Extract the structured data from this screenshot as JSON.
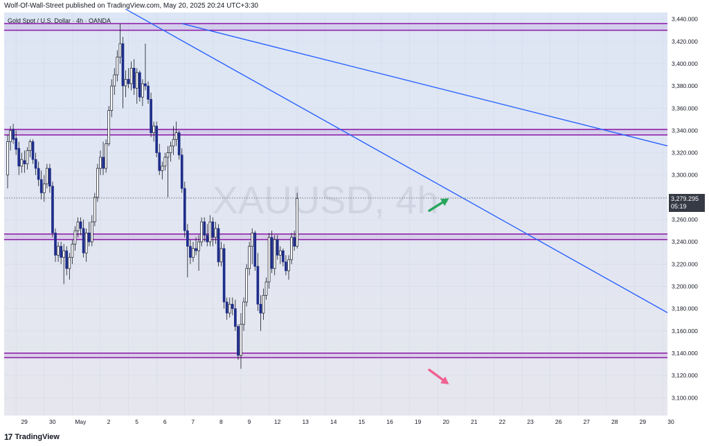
{
  "header": {
    "published_by": "Wolf-Of-Wall-Street published on TradingView.com, May 20, 2025 20:24 UTC+3:30"
  },
  "footer": {
    "logo_mark": "17",
    "logo_text": "TradingView"
  },
  "chart_data": {
    "type": "candlestick",
    "title": "Gold Spot / U.S. Dollar · 4h · OANDA",
    "watermark": "XAUUSD, 4h",
    "ylim": [
      3084,
      3446
    ],
    "y_ticks": [
      3100,
      3120,
      3140,
      3160,
      3180,
      3200,
      3220,
      3240,
      3260,
      3280,
      3300,
      3320,
      3340,
      3360,
      3380,
      3400,
      3420,
      3440
    ],
    "y_tick_labels": [
      "3,100.000",
      "3,120.000",
      "3,140.000",
      "3,160.000",
      "3,180.000",
      "3,200.000",
      "3,220.000",
      "3,240.000",
      "3,260.000",
      "3,280.000",
      "3,300.000",
      "3,320.000",
      "3,340.000",
      "3,360.000",
      "3,380.000",
      "3,400.000",
      "3,420.000",
      "3,440.000"
    ],
    "x_ticks": [
      {
        "label": "29",
        "bar": 3
      },
      {
        "label": "30",
        "bar": 13
      },
      {
        "label": "May",
        "bar": 23
      },
      {
        "label": "2",
        "bar": 33
      },
      {
        "label": "5",
        "bar": 43
      },
      {
        "label": "6",
        "bar": 53
      },
      {
        "label": "7",
        "bar": 63
      },
      {
        "label": "8",
        "bar": 73
      },
      {
        "label": "9",
        "bar": 83
      },
      {
        "label": "12",
        "bar": 93
      },
      {
        "label": "13",
        "bar": 103
      },
      {
        "label": "14",
        "bar": 113
      },
      {
        "label": "15",
        "bar": 123
      },
      {
        "label": "16",
        "bar": 133
      },
      {
        "label": "19",
        "bar": 143
      },
      {
        "label": "20",
        "bar": 153
      },
      {
        "label": "21",
        "bar": 163
      },
      {
        "label": "22",
        "bar": 173
      },
      {
        "label": "23",
        "bar": 183
      },
      {
        "label": "26",
        "bar": 193
      },
      {
        "label": "27",
        "bar": 203
      },
      {
        "label": "28",
        "bar": 213
      },
      {
        "label": "29",
        "bar": 223
      },
      {
        "label": "30",
        "bar": 233
      }
    ],
    "last_price": {
      "value": 3279.295,
      "label": "3,279.295",
      "countdown": "05:19"
    },
    "colors": {
      "up_body": "#ffffff",
      "up_border": "#131722",
      "down_body": "#1f2e8a",
      "wick": "#131722",
      "zone": "#8e24aa",
      "trendline": "#2962ff",
      "bg_top": "#dde6f5",
      "bg_bottom": "#e6e6ee",
      "up_arrow": "#26a65b",
      "down_arrow": "#f06292"
    },
    "horizontal_zones": [
      {
        "top": 3436,
        "bottom": 3430
      },
      {
        "top": 3341,
        "bottom": 3336
      },
      {
        "top": 3247,
        "bottom": 3242
      },
      {
        "top": 3140,
        "bottom": 3136
      }
    ],
    "trendlines": [
      {
        "from": {
          "bar": 62,
          "price": 3436
        },
        "to": {
          "bar": 235,
          "price": 3326
        }
      },
      {
        "from": {
          "bar": 42,
          "price": 3449
        },
        "to": {
          "bar": 235,
          "price": 3176
        }
      }
    ],
    "arrows": [
      {
        "direction": "up",
        "from": {
          "bar": 150,
          "price": 3268
        },
        "to": {
          "bar": 157,
          "price": 3279
        }
      },
      {
        "direction": "down",
        "from": {
          "bar": 150,
          "price": 3125
        },
        "to": {
          "bar": 157,
          "price": 3112
        }
      }
    ],
    "candles": [
      {
        "bar": 0,
        "o": 3300,
        "h": 3336,
        "l": 3288,
        "c": 3330
      },
      {
        "bar": 1,
        "o": 3330,
        "h": 3344,
        "l": 3322,
        "c": 3340
      },
      {
        "bar": 2,
        "o": 3341,
        "h": 3346,
        "l": 3328,
        "c": 3332
      },
      {
        "bar": 3,
        "o": 3333,
        "h": 3340,
        "l": 3318,
        "c": 3323
      },
      {
        "bar": 4,
        "o": 3324,
        "h": 3330,
        "l": 3300,
        "c": 3308
      },
      {
        "bar": 5,
        "o": 3308,
        "h": 3320,
        "l": 3302,
        "c": 3314
      },
      {
        "bar": 6,
        "o": 3313,
        "h": 3322,
        "l": 3302,
        "c": 3310
      },
      {
        "bar": 7,
        "o": 3310,
        "h": 3325,
        "l": 3305,
        "c": 3322
      },
      {
        "bar": 8,
        "o": 3322,
        "h": 3332,
        "l": 3316,
        "c": 3330
      },
      {
        "bar": 9,
        "o": 3330,
        "h": 3332,
        "l": 3310,
        "c": 3314
      },
      {
        "bar": 10,
        "o": 3314,
        "h": 3320,
        "l": 3300,
        "c": 3306
      },
      {
        "bar": 11,
        "o": 3306,
        "h": 3312,
        "l": 3290,
        "c": 3296
      },
      {
        "bar": 12,
        "o": 3296,
        "h": 3304,
        "l": 3278,
        "c": 3284
      },
      {
        "bar": 13,
        "o": 3284,
        "h": 3300,
        "l": 3276,
        "c": 3292
      },
      {
        "bar": 14,
        "o": 3292,
        "h": 3310,
        "l": 3288,
        "c": 3306
      },
      {
        "bar": 15,
        "o": 3306,
        "h": 3310,
        "l": 3284,
        "c": 3290
      },
      {
        "bar": 16,
        "o": 3290,
        "h": 3294,
        "l": 3244,
        "c": 3248
      },
      {
        "bar": 17,
        "o": 3248,
        "h": 3252,
        "l": 3222,
        "c": 3228
      },
      {
        "bar": 18,
        "o": 3228,
        "h": 3240,
        "l": 3222,
        "c": 3236
      },
      {
        "bar": 19,
        "o": 3236,
        "h": 3240,
        "l": 3220,
        "c": 3226
      },
      {
        "bar": 20,
        "o": 3226,
        "h": 3238,
        "l": 3202,
        "c": 3232
      },
      {
        "bar": 21,
        "o": 3232,
        "h": 3236,
        "l": 3210,
        "c": 3216
      },
      {
        "bar": 22,
        "o": 3216,
        "h": 3230,
        "l": 3206,
        "c": 3226
      },
      {
        "bar": 23,
        "o": 3226,
        "h": 3242,
        "l": 3220,
        "c": 3238
      },
      {
        "bar": 24,
        "o": 3238,
        "h": 3254,
        "l": 3232,
        "c": 3250
      },
      {
        "bar": 25,
        "o": 3250,
        "h": 3262,
        "l": 3244,
        "c": 3258
      },
      {
        "bar": 26,
        "o": 3258,
        "h": 3262,
        "l": 3246,
        "c": 3252
      },
      {
        "bar": 27,
        "o": 3252,
        "h": 3260,
        "l": 3226,
        "c": 3230
      },
      {
        "bar": 28,
        "o": 3230,
        "h": 3252,
        "l": 3222,
        "c": 3248
      },
      {
        "bar": 29,
        "o": 3248,
        "h": 3258,
        "l": 3236,
        "c": 3240
      },
      {
        "bar": 30,
        "o": 3240,
        "h": 3264,
        "l": 3236,
        "c": 3258
      },
      {
        "bar": 31,
        "o": 3258,
        "h": 3284,
        "l": 3254,
        "c": 3280
      },
      {
        "bar": 32,
        "o": 3280,
        "h": 3310,
        "l": 3276,
        "c": 3306
      },
      {
        "bar": 33,
        "o": 3306,
        "h": 3322,
        "l": 3300,
        "c": 3316
      },
      {
        "bar": 34,
        "o": 3316,
        "h": 3330,
        "l": 3300,
        "c": 3306
      },
      {
        "bar": 35,
        "o": 3306,
        "h": 3332,
        "l": 3302,
        "c": 3328
      },
      {
        "bar": 36,
        "o": 3328,
        "h": 3362,
        "l": 3326,
        "c": 3358
      },
      {
        "bar": 37,
        "o": 3358,
        "h": 3386,
        "l": 3352,
        "c": 3380
      },
      {
        "bar": 38,
        "o": 3380,
        "h": 3396,
        "l": 3372,
        "c": 3390
      },
      {
        "bar": 39,
        "o": 3390,
        "h": 3412,
        "l": 3384,
        "c": 3406
      },
      {
        "bar": 40,
        "o": 3406,
        "h": 3436,
        "l": 3400,
        "c": 3418
      },
      {
        "bar": 41,
        "o": 3418,
        "h": 3424,
        "l": 3360,
        "c": 3380
      },
      {
        "bar": 42,
        "o": 3380,
        "h": 3394,
        "l": 3370,
        "c": 3386
      },
      {
        "bar": 43,
        "o": 3386,
        "h": 3396,
        "l": 3378,
        "c": 3382
      },
      {
        "bar": 44,
        "o": 3382,
        "h": 3402,
        "l": 3376,
        "c": 3396
      },
      {
        "bar": 45,
        "o": 3396,
        "h": 3404,
        "l": 3372,
        "c": 3378
      },
      {
        "bar": 46,
        "o": 3378,
        "h": 3396,
        "l": 3364,
        "c": 3392
      },
      {
        "bar": 47,
        "o": 3392,
        "h": 3394,
        "l": 3366,
        "c": 3370
      },
      {
        "bar": 48,
        "o": 3370,
        "h": 3386,
        "l": 3362,
        "c": 3382
      },
      {
        "bar": 49,
        "o": 3382,
        "h": 3418,
        "l": 3376,
        "c": 3380
      },
      {
        "bar": 50,
        "o": 3380,
        "h": 3384,
        "l": 3364,
        "c": 3368
      },
      {
        "bar": 51,
        "o": 3368,
        "h": 3374,
        "l": 3334,
        "c": 3338
      },
      {
        "bar": 52,
        "o": 3338,
        "h": 3348,
        "l": 3330,
        "c": 3344
      },
      {
        "bar": 53,
        "o": 3344,
        "h": 3348,
        "l": 3316,
        "c": 3320
      },
      {
        "bar": 54,
        "o": 3320,
        "h": 3328,
        "l": 3300,
        "c": 3304
      },
      {
        "bar": 55,
        "o": 3304,
        "h": 3312,
        "l": 3296,
        "c": 3308
      },
      {
        "bar": 56,
        "o": 3308,
        "h": 3320,
        "l": 3304,
        "c": 3316
      },
      {
        "bar": 57,
        "o": 3316,
        "h": 3326,
        "l": 3280,
        "c": 3320
      },
      {
        "bar": 58,
        "o": 3320,
        "h": 3330,
        "l": 3312,
        "c": 3326
      },
      {
        "bar": 59,
        "o": 3326,
        "h": 3344,
        "l": 3318,
        "c": 3332
      },
      {
        "bar": 60,
        "o": 3332,
        "h": 3348,
        "l": 3326,
        "c": 3338
      },
      {
        "bar": 61,
        "o": 3338,
        "h": 3340,
        "l": 3314,
        "c": 3318
      },
      {
        "bar": 62,
        "o": 3318,
        "h": 3324,
        "l": 3284,
        "c": 3288
      },
      {
        "bar": 63,
        "o": 3288,
        "h": 3294,
        "l": 3244,
        "c": 3250
      },
      {
        "bar": 64,
        "o": 3250,
        "h": 3256,
        "l": 3208,
        "c": 3236
      },
      {
        "bar": 65,
        "o": 3236,
        "h": 3242,
        "l": 3220,
        "c": 3226
      },
      {
        "bar": 66,
        "o": 3226,
        "h": 3240,
        "l": 3222,
        "c": 3234
      },
      {
        "bar": 67,
        "o": 3234,
        "h": 3244,
        "l": 3228,
        "c": 3232
      },
      {
        "bar": 68,
        "o": 3232,
        "h": 3246,
        "l": 3214,
        "c": 3240
      },
      {
        "bar": 69,
        "o": 3240,
        "h": 3262,
        "l": 3236,
        "c": 3258
      },
      {
        "bar": 70,
        "o": 3258,
        "h": 3262,
        "l": 3240,
        "c": 3246
      },
      {
        "bar": 71,
        "o": 3246,
        "h": 3256,
        "l": 3236,
        "c": 3240
      },
      {
        "bar": 72,
        "o": 3240,
        "h": 3264,
        "l": 3236,
        "c": 3258
      },
      {
        "bar": 73,
        "o": 3258,
        "h": 3262,
        "l": 3236,
        "c": 3244
      },
      {
        "bar": 74,
        "o": 3244,
        "h": 3258,
        "l": 3238,
        "c": 3252
      },
      {
        "bar": 75,
        "o": 3252,
        "h": 3256,
        "l": 3218,
        "c": 3222
      },
      {
        "bar": 76,
        "o": 3222,
        "h": 3240,
        "l": 3218,
        "c": 3234
      },
      {
        "bar": 77,
        "o": 3234,
        "h": 3238,
        "l": 3180,
        "c": 3186
      },
      {
        "bar": 78,
        "o": 3186,
        "h": 3190,
        "l": 3170,
        "c": 3176
      },
      {
        "bar": 79,
        "o": 3176,
        "h": 3190,
        "l": 3172,
        "c": 3184
      },
      {
        "bar": 80,
        "o": 3184,
        "h": 3190,
        "l": 3174,
        "c": 3180
      },
      {
        "bar": 81,
        "o": 3180,
        "h": 3188,
        "l": 3160,
        "c": 3164
      },
      {
        "bar": 82,
        "o": 3164,
        "h": 3166,
        "l": 3134,
        "c": 3138
      },
      {
        "bar": 83,
        "o": 3138,
        "h": 3176,
        "l": 3126,
        "c": 3166
      },
      {
        "bar": 84,
        "o": 3166,
        "h": 3190,
        "l": 3160,
        "c": 3186
      },
      {
        "bar": 85,
        "o": 3186,
        "h": 3220,
        "l": 3182,
        "c": 3216
      },
      {
        "bar": 86,
        "o": 3216,
        "h": 3240,
        "l": 3210,
        "c": 3236
      },
      {
        "bar": 87,
        "o": 3236,
        "h": 3252,
        "l": 3220,
        "c": 3248
      },
      {
        "bar": 88,
        "o": 3248,
        "h": 3250,
        "l": 3214,
        "c": 3218
      },
      {
        "bar": 89,
        "o": 3218,
        "h": 3230,
        "l": 3178,
        "c": 3184
      },
      {
        "bar": 90,
        "o": 3184,
        "h": 3192,
        "l": 3160,
        "c": 3176
      },
      {
        "bar": 91,
        "o": 3176,
        "h": 3198,
        "l": 3170,
        "c": 3192
      },
      {
        "bar": 92,
        "o": 3192,
        "h": 3208,
        "l": 3188,
        "c": 3204
      },
      {
        "bar": 93,
        "o": 3204,
        "h": 3248,
        "l": 3198,
        "c": 3244
      },
      {
        "bar": 94,
        "o": 3244,
        "h": 3250,
        "l": 3212,
        "c": 3216
      },
      {
        "bar": 95,
        "o": 3216,
        "h": 3246,
        "l": 3210,
        "c": 3242
      },
      {
        "bar": 96,
        "o": 3242,
        "h": 3246,
        "l": 3224,
        "c": 3228
      },
      {
        "bar": 97,
        "o": 3228,
        "h": 3236,
        "l": 3220,
        "c": 3232
      },
      {
        "bar": 98,
        "o": 3232,
        "h": 3234,
        "l": 3218,
        "c": 3222
      },
      {
        "bar": 99,
        "o": 3222,
        "h": 3228,
        "l": 3210,
        "c": 3214
      },
      {
        "bar": 100,
        "o": 3214,
        "h": 3228,
        "l": 3206,
        "c": 3224
      },
      {
        "bar": 101,
        "o": 3224,
        "h": 3248,
        "l": 3220,
        "c": 3244
      },
      {
        "bar": 102,
        "o": 3244,
        "h": 3250,
        "l": 3232,
        "c": 3236
      },
      {
        "bar": 103,
        "o": 3236,
        "h": 3284,
        "l": 3234,
        "c": 3279
      }
    ]
  }
}
